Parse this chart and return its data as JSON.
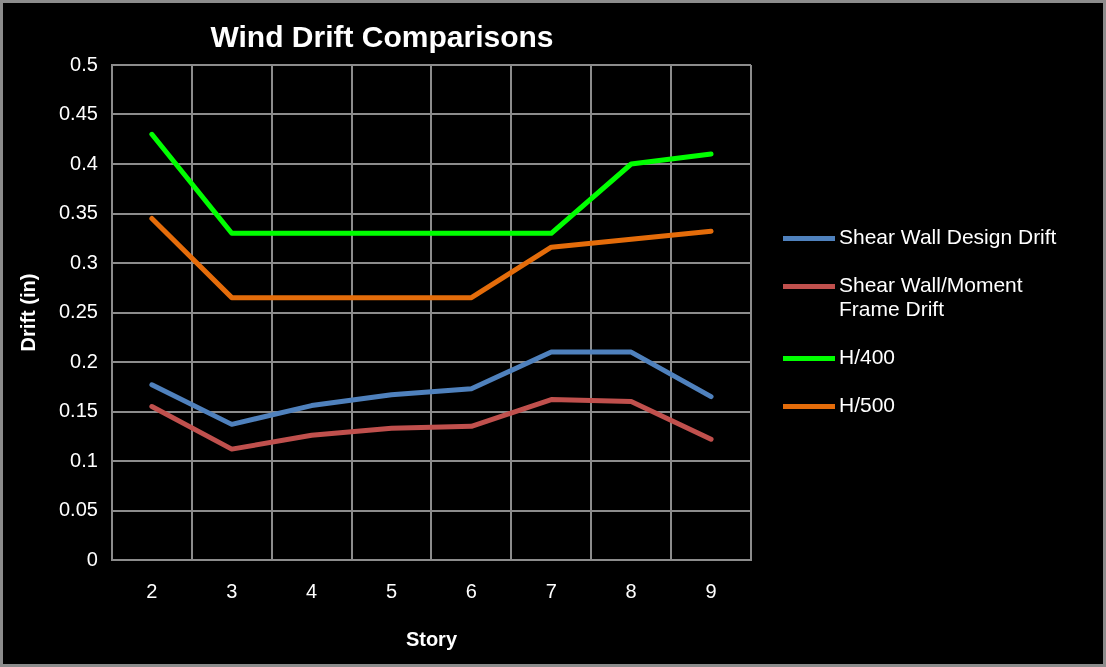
{
  "chart_data": {
    "type": "line",
    "title": "Wind Drift Comparisons",
    "xlabel": "Story",
    "ylabel": "Drift (in)",
    "categories": [
      "2",
      "3",
      "4",
      "5",
      "6",
      "7",
      "8",
      "9"
    ],
    "series": [
      {
        "name": "Shear Wall Design Drift",
        "color": "#4f81bd",
        "values": [
          0.177,
          0.137,
          0.156,
          0.167,
          0.173,
          0.21,
          0.21,
          0.165
        ]
      },
      {
        "name": "Shear Wall/Moment Frame Drift",
        "color": "#c0504d",
        "values": [
          0.155,
          0.112,
          0.126,
          0.133,
          0.135,
          0.162,
          0.16,
          0.122
        ]
      },
      {
        "name": "H/400",
        "color": "#00ff00",
        "values": [
          0.43,
          0.33,
          0.33,
          0.33,
          0.33,
          0.33,
          0.4,
          0.41
        ]
      },
      {
        "name": "H/500",
        "color": "#e46c0a",
        "values": [
          0.345,
          0.265,
          0.265,
          0.265,
          0.265,
          0.316,
          0.324,
          0.332
        ]
      }
    ],
    "ylim": [
      0,
      0.5
    ],
    "yticks": [
      0,
      0.05,
      0.1,
      0.15,
      0.2,
      0.25,
      0.3,
      0.35,
      0.4,
      0.45,
      0.5
    ],
    "grid": true,
    "legend": "right",
    "marker": "none",
    "line_style": "solid"
  }
}
